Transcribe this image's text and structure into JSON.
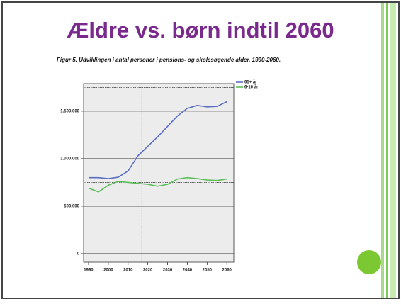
{
  "chart_data": {
    "type": "line",
    "title": "Ældre vs. børn indtil 2060",
    "subtitle": "Figur 5. Udviklingen i antal personer i pensions- og skolesøgende alder. 1990-2060.",
    "x": [
      1990,
      1995,
      2000,
      2005,
      2010,
      2015,
      2020,
      2025,
      2030,
      2035,
      2040,
      2045,
      2050,
      2055,
      2060
    ],
    "series": [
      {
        "name": "65+ år",
        "color": "#5b6fc2",
        "values": [
          800000,
          800000,
          790000,
          805000,
          870000,
          1030000,
          1130000,
          1230000,
          1340000,
          1450000,
          1530000,
          1560000,
          1545000,
          1550000,
          1600000
        ]
      },
      {
        "name": "6-16 år",
        "color": "#5cbf5a",
        "values": [
          690000,
          650000,
          720000,
          760000,
          750000,
          740000,
          730000,
          710000,
          730000,
          785000,
          800000,
          790000,
          775000,
          770000,
          785000
        ]
      }
    ],
    "xlim": [
      1987.5,
      2063.5
    ],
    "xticks": [
      1990,
      2000,
      2010,
      2020,
      2030,
      2040,
      2050,
      2060
    ],
    "ylim": [
      -90000,
      1790000
    ],
    "yticks": [
      0,
      {
        "value": 500000,
        "label": "500.000"
      },
      {
        "value": 1000000,
        "label": "1.000.000"
      },
      {
        "value": 1500000,
        "label": "1.500.000"
      }
    ],
    "minor_yticks": [
      250000,
      750000,
      1250000,
      1750000
    ],
    "reference_x": 2017,
    "grid": true,
    "legend": "top-right"
  }
}
